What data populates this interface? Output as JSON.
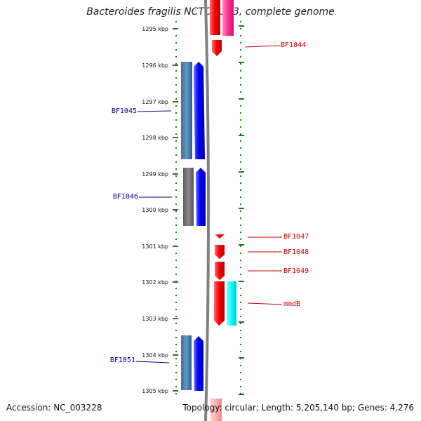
{
  "title": "Bacteroides fragilis NCTC 9343, complete genome",
  "footer": {
    "accession": "Accession: NC_003228",
    "summary": "Topology: circular; Length: 5,205,140 bp; Genes: 4,276"
  },
  "ruler": {
    "ticks": [
      "1295 kbp",
      "1296 kbp",
      "1297 kbp",
      "1298 kbp",
      "1299 kbp",
      "1300 kbp",
      "1301 kbp",
      "1302 kbp",
      "1303 kbp",
      "1304 kbp",
      "1305 kbp"
    ]
  },
  "labels": {
    "left": [
      "BF1045",
      "BF1046",
      "BF1051"
    ],
    "right": [
      "BF1044",
      "BF1047",
      "BF1048",
      "BF1049",
      "mmdB"
    ]
  },
  "colors": {
    "left_label": "#00008b",
    "right_label": "#cc0000",
    "reverse_cds": "#0000ff",
    "forward_cds": "#ff0000",
    "forward_gene": "#ff3399",
    "feature_cyan": "#00ffff",
    "feature_steelblue": "#4682b4",
    "feature_gray": "#707070",
    "tick_green": "#1b7a1b",
    "backbone": "#808080"
  }
}
